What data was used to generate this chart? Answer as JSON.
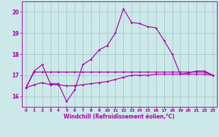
{
  "xlabel": "Windchill (Refroidissement éolien,°C)",
  "xlim": [
    -0.5,
    23.5
  ],
  "ylim": [
    15.5,
    20.5
  ],
  "yticks": [
    16,
    17,
    18,
    19,
    20
  ],
  "xticks": [
    0,
    1,
    2,
    3,
    4,
    5,
    6,
    7,
    8,
    9,
    10,
    11,
    12,
    13,
    14,
    15,
    16,
    17,
    18,
    19,
    20,
    21,
    22,
    23
  ],
  "bg_color": "#cce8e8",
  "grid_color": "#aacccc",
  "line_color": "#aa00aa",
  "line1_x": [
    0,
    1,
    2,
    3,
    4,
    5,
    6,
    7,
    8,
    9,
    10,
    11,
    12,
    13,
    14,
    15,
    16,
    17,
    18,
    19,
    20,
    21,
    22,
    23
  ],
  "line1_y": [
    16.4,
    17.15,
    17.15,
    17.15,
    17.15,
    17.15,
    17.15,
    17.15,
    17.15,
    17.15,
    17.15,
    17.15,
    17.15,
    17.15,
    17.15,
    17.15,
    17.15,
    17.15,
    17.15,
    17.15,
    17.15,
    17.15,
    17.15,
    17.0
  ],
  "line2_x": [
    0,
    1,
    2,
    3,
    4,
    5,
    6,
    7,
    8,
    9,
    10,
    11,
    12,
    13,
    14,
    15,
    16,
    17,
    18,
    19,
    20,
    21,
    22,
    23
  ],
  "line2_y": [
    16.4,
    17.2,
    17.5,
    16.6,
    16.6,
    15.75,
    16.3,
    17.5,
    17.75,
    18.2,
    18.4,
    19.0,
    20.15,
    19.5,
    19.45,
    19.3,
    19.25,
    18.65,
    18.0,
    17.05,
    17.1,
    17.2,
    17.2,
    17.0
  ],
  "line3_x": [
    0,
    1,
    2,
    3,
    4,
    5,
    6,
    7,
    8,
    9,
    10,
    11,
    12,
    13,
    14,
    15,
    16,
    17,
    18,
    19,
    20,
    21,
    22,
    23
  ],
  "line3_y": [
    16.4,
    16.55,
    16.65,
    16.55,
    16.55,
    16.5,
    16.5,
    16.55,
    16.6,
    16.65,
    16.7,
    16.8,
    16.9,
    17.0,
    17.0,
    17.0,
    17.05,
    17.05,
    17.05,
    17.05,
    17.05,
    17.05,
    17.05,
    17.0
  ]
}
